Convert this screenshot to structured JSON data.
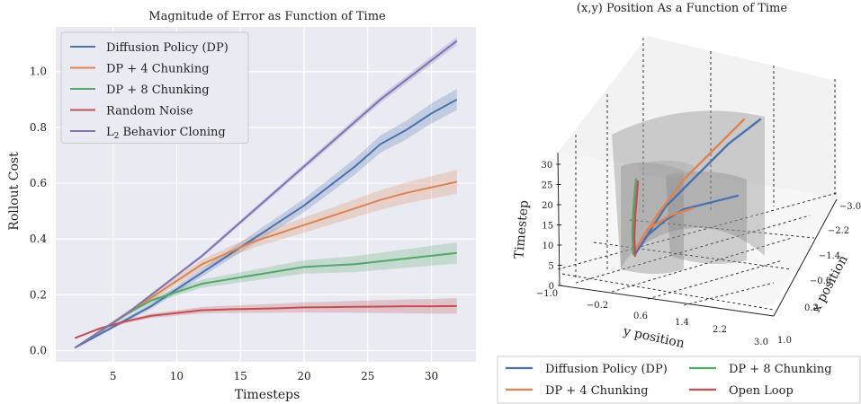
{
  "colors": {
    "blue": "#4c72b0",
    "orange": "#dd8452",
    "green": "#55a868",
    "red": "#c44e52",
    "purple": "#8172b3",
    "panel_bg": "#eaeaf2"
  },
  "chart_data": [
    {
      "type": "line",
      "title": "Magnitude of Error as Function of Time",
      "xlabel": "Timesteps",
      "ylabel": "Rollout Cost",
      "xlim": [
        0.5,
        33.5
      ],
      "ylim": [
        -0.04,
        1.16
      ],
      "x_ticks": [
        5,
        10,
        15,
        20,
        25,
        30
      ],
      "y_ticks": [
        0.0,
        0.2,
        0.4,
        0.6,
        0.8,
        1.0
      ],
      "y_tick_labels": [
        "0.0",
        "0.2",
        "0.4",
        "0.6",
        "0.8",
        "1.0"
      ],
      "grid": true,
      "legend_position": "top-left",
      "x": [
        2,
        4,
        6,
        8,
        10,
        12,
        14,
        16,
        18,
        20,
        22,
        24,
        26,
        28,
        30,
        32
      ],
      "series": [
        {
          "name": "Diffusion Policy (DP)",
          "color": "blue",
          "values": [
            0.01,
            0.06,
            0.11,
            0.16,
            0.22,
            0.28,
            0.34,
            0.4,
            0.46,
            0.52,
            0.59,
            0.66,
            0.74,
            0.79,
            0.85,
            0.9
          ],
          "band": 0.035
        },
        {
          "name": "DP + 4 Chunking",
          "color": "orange",
          "values": [
            0.01,
            0.07,
            0.13,
            0.19,
            0.25,
            0.31,
            0.35,
            0.39,
            0.42,
            0.45,
            0.48,
            0.51,
            0.54,
            0.565,
            0.585,
            0.605
          ],
          "band": 0.04
        },
        {
          "name": "DP + 8 Chunking",
          "color": "green",
          "values": [
            0.01,
            0.07,
            0.13,
            0.18,
            0.21,
            0.24,
            0.255,
            0.27,
            0.285,
            0.3,
            0.305,
            0.31,
            0.32,
            0.33,
            0.34,
            0.35
          ],
          "band": 0.035
        },
        {
          "name": "Random Noise",
          "color": "red",
          "values": [
            0.045,
            0.08,
            0.105,
            0.125,
            0.135,
            0.145,
            0.148,
            0.15,
            0.152,
            0.155,
            0.156,
            0.157,
            0.158,
            0.159,
            0.159,
            0.16
          ],
          "band": 0.025
        },
        {
          "name": "L2 Behavior Cloning",
          "color": "purple",
          "values": [
            0.01,
            0.07,
            0.13,
            0.2,
            0.27,
            0.34,
            0.42,
            0.5,
            0.58,
            0.66,
            0.74,
            0.82,
            0.9,
            0.97,
            1.04,
            1.11
          ],
          "band": 0.012
        }
      ]
    },
    {
      "type": "line",
      "projection": "3d",
      "title": "(x,y) Position As a Function of Time",
      "xlabel": "y position",
      "ylabel": "x position",
      "zlabel": "Timestep",
      "y_position_ticks": [
        "−1.0",
        "−0.2",
        "0.6",
        "1.4",
        "2.2",
        "3.0"
      ],
      "x_position_ticks": [
        "−3.0",
        "−2.2",
        "−1.4",
        "−0.6",
        "0.2",
        "1.0"
      ],
      "timestep_ticks": [
        "0",
        "5",
        "10",
        "15",
        "20",
        "25",
        "30"
      ],
      "legend_position": "bottom",
      "series": [
        {
          "name": "Diffusion Policy (DP)",
          "color": "blue"
        },
        {
          "name": "DP + 4 Chunking",
          "color": "orange"
        },
        {
          "name": "DP + 8 Chunking",
          "color": "green"
        },
        {
          "name": "Open Loop",
          "color": "red"
        }
      ]
    }
  ]
}
